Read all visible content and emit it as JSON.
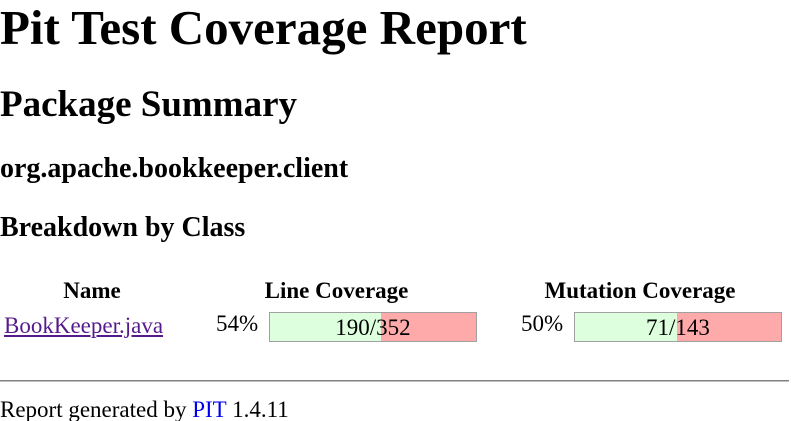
{
  "report": {
    "title": "Pit Test Coverage Report",
    "section_title": "Package Summary",
    "package_name": "org.apache.bookkeeper.client",
    "breakdown_title": "Breakdown by Class"
  },
  "table": {
    "headers": {
      "name": "Name",
      "line": "Line Coverage",
      "mutation": "Mutation Coverage"
    },
    "rows": [
      {
        "name": "BookKeeper.java",
        "line_percent": "54%",
        "line_ratio": "190/352",
        "line_covered": 190,
        "line_total": 352,
        "mutation_percent": "50%",
        "mutation_ratio": "71/143",
        "mutation_covered": 71,
        "mutation_total": 143
      }
    ]
  },
  "colors": {
    "covered": "#ddffdd",
    "uncovered": "#ffaaaa",
    "visited_link": "#551a8b",
    "link": "#0000ee"
  },
  "footer": {
    "prefix": "Report generated by",
    "tool_link": "PIT",
    "version": "1.4.11"
  }
}
